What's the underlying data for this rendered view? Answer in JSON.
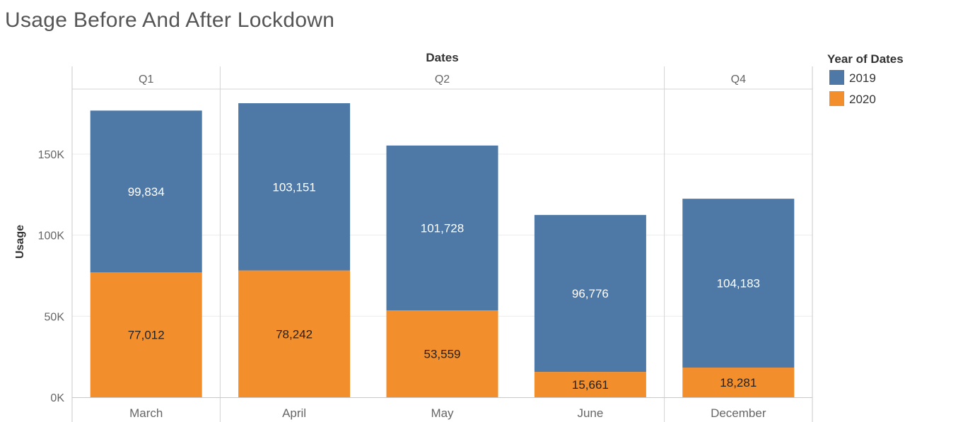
{
  "title": "Usage Before And After Lockdown",
  "chart_data": {
    "type": "bar",
    "stacked": true,
    "title": "Usage Before And After Lockdown",
    "column_header": "Dates",
    "ylabel": "Usage",
    "ylim": [
      0,
      190000
    ],
    "yticks": [
      0,
      50000,
      100000,
      150000
    ],
    "ytick_labels": [
      "0K",
      "50K",
      "100K",
      "150K"
    ],
    "quarters": [
      {
        "label": "Q1",
        "months": [
          "March"
        ]
      },
      {
        "label": "Q2",
        "months": [
          "April",
          "May",
          "June"
        ]
      },
      {
        "label": "Q4",
        "months": [
          "December"
        ]
      }
    ],
    "categories": [
      "March",
      "April",
      "May",
      "June",
      "December"
    ],
    "series": [
      {
        "name": "2020",
        "values": [
          77012,
          78242,
          53559,
          15661,
          18281
        ],
        "color": "#f28e2b",
        "label_color": "#222222"
      },
      {
        "name": "2019",
        "values": [
          99834,
          103151,
          101728,
          96776,
          104183
        ],
        "color": "#4e79a7",
        "label_color": "#ffffff"
      }
    ],
    "data_labels": {
      "2020": [
        "77,012",
        "78,242",
        "53,559",
        "15,661",
        "18,281"
      ],
      "2019": [
        "99,834",
        "103,151",
        "101,728",
        "96,776",
        "104,183"
      ]
    },
    "legend": {
      "title": "Year of Dates",
      "position": "right",
      "entries": [
        {
          "name": "2019",
          "color": "#4e79a7"
        },
        {
          "name": "2020",
          "color": "#f28e2b"
        }
      ]
    },
    "grid": true
  }
}
